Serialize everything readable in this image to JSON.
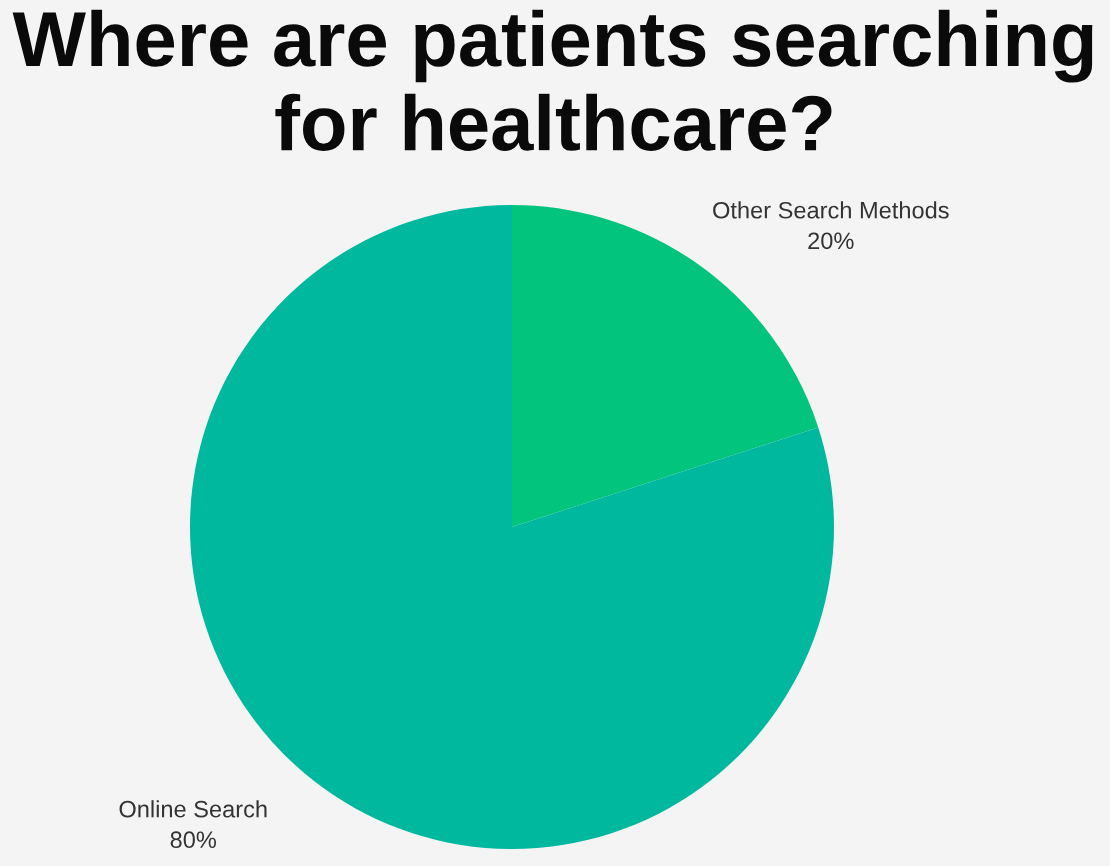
{
  "chart_data": {
    "type": "pie",
    "title": "Where are patients searching\nfor healthcare?",
    "categories": [
      "Other Search Methods",
      "Online Search"
    ],
    "values": [
      20,
      80
    ],
    "colors": [
      "#03c47c",
      "#00b89e"
    ],
    "value_labels": [
      "20%",
      "80%"
    ]
  }
}
